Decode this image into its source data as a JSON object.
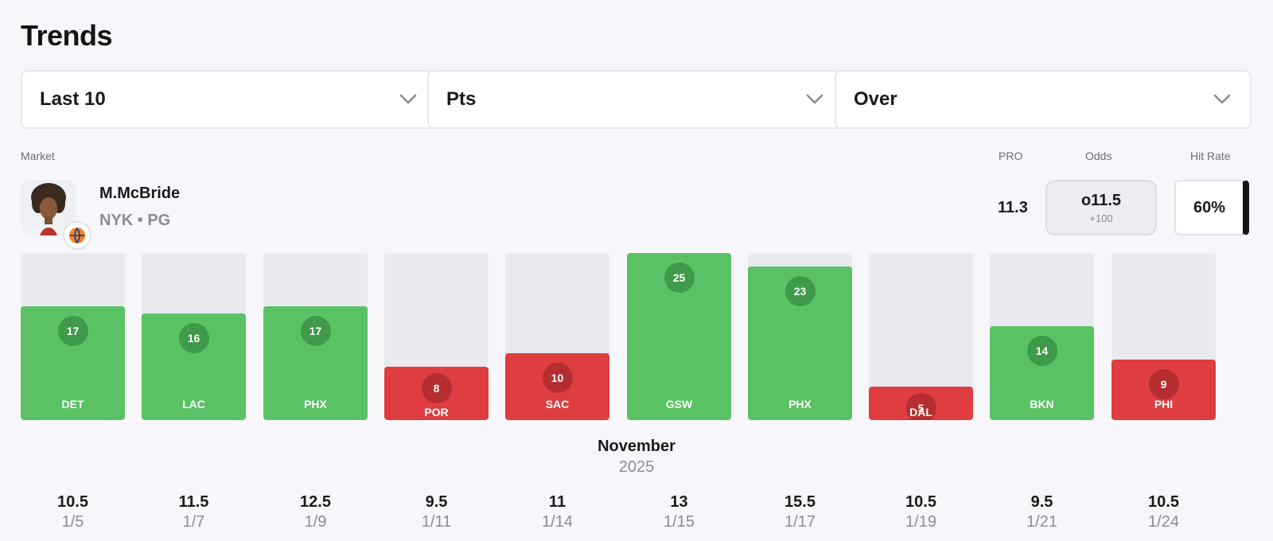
{
  "header": {
    "title": "Trends"
  },
  "filters": [
    {
      "value": "Last 10",
      "icon": "chevron-down-icon"
    },
    {
      "value": "Pts",
      "icon": "chevron-down-icon"
    },
    {
      "value": "Over",
      "icon": "chevron-down-icon"
    }
  ],
  "labels": {
    "market": "Market",
    "pro": "PRO",
    "odds": "Odds",
    "hit_rate": "Hit Rate"
  },
  "player": {
    "name": "M.McBride",
    "meta": "NYK • PG"
  },
  "stats": {
    "pro": "11.3",
    "odds_line": "o11.5",
    "odds_price": "+100",
    "hit_rate": "60%"
  },
  "colors": {
    "over": "#5ac265",
    "under": "#df3d3f",
    "empty": "#e9e9ef"
  },
  "timeline": {
    "month": "November",
    "year": "2025"
  },
  "chart_data": {
    "type": "bar",
    "ylim": [
      0,
      25
    ],
    "categories": [
      "DET",
      "LAC",
      "PHX",
      "POR",
      "SAC",
      "GSW",
      "PHX",
      "DAL",
      "BKN",
      "PHI"
    ],
    "values": [
      17,
      16,
      17,
      8,
      10,
      25,
      23,
      5,
      14,
      9
    ],
    "results": [
      "over",
      "over",
      "over",
      "under",
      "under",
      "over",
      "over",
      "under",
      "over",
      "under"
    ],
    "lines": [
      "10.5",
      "11.5",
      "12.5",
      "9.5",
      "11",
      "13",
      "15.5",
      "10.5",
      "9.5",
      "10.5"
    ],
    "dates": [
      "1/5",
      "1/7",
      "1/9",
      "1/11",
      "1/14",
      "1/15",
      "1/17",
      "1/19",
      "1/21",
      "1/24"
    ]
  }
}
